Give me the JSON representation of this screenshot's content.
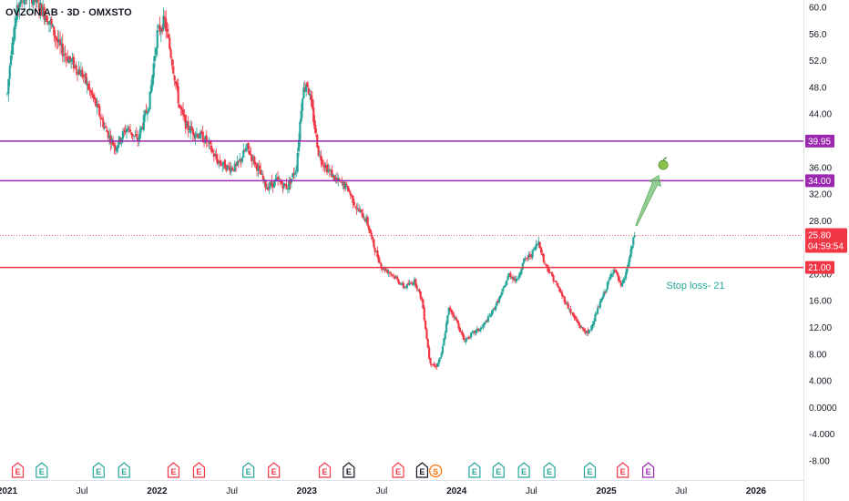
{
  "chart_data": {
    "type": "candlestick",
    "title": "OVZON AB · 3D · OMXSTO",
    "ylim": [
      -8,
      60
    ],
    "y_ticks": [
      "60.0",
      "56.0",
      "52.0",
      "48.0",
      "44.00",
      "40.00",
      "36.00",
      "32.00",
      "28.00",
      "24.00",
      "20.00",
      "16.00",
      "12.00",
      "8.00",
      "4.000",
      "0.0000",
      "-4.000",
      "-8.00"
    ],
    "x_ticks": [
      {
        "label": "2021",
        "t": 2021.0
      },
      {
        "label": "Jul",
        "t": 2021.5
      },
      {
        "label": "2022",
        "t": 2022.0
      },
      {
        "label": "Jul",
        "t": 2022.5
      },
      {
        "label": "2023",
        "t": 2023.0
      },
      {
        "label": "Jul",
        "t": 2023.5
      },
      {
        "label": "2024",
        "t": 2024.0
      },
      {
        "label": "Jul",
        "t": 2024.5
      },
      {
        "label": "2025",
        "t": 2025.0
      },
      {
        "label": "Jul",
        "t": 2025.5
      },
      {
        "label": "2026",
        "t": 2026.0
      }
    ],
    "xlim": [
      2021.0,
      2026.2
    ],
    "price_path": [
      [
        2021.0,
        47
      ],
      [
        2021.03,
        55
      ],
      [
        2021.08,
        61
      ],
      [
        2021.15,
        62
      ],
      [
        2021.22,
        60
      ],
      [
        2021.28,
        58
      ],
      [
        2021.35,
        54
      ],
      [
        2021.42,
        52
      ],
      [
        2021.5,
        50
      ],
      [
        2021.58,
        46
      ],
      [
        2021.65,
        42
      ],
      [
        2021.72,
        39
      ],
      [
        2021.8,
        42
      ],
      [
        2021.87,
        40
      ],
      [
        2021.95,
        46
      ],
      [
        2022.0,
        56
      ],
      [
        2022.05,
        58
      ],
      [
        2022.1,
        52
      ],
      [
        2022.15,
        45
      ],
      [
        2022.2,
        42
      ],
      [
        2022.27,
        41
      ],
      [
        2022.33,
        40
      ],
      [
        2022.4,
        37
      ],
      [
        2022.47,
        36
      ],
      [
        2022.53,
        36
      ],
      [
        2022.6,
        39
      ],
      [
        2022.67,
        36
      ],
      [
        2022.73,
        33
      ],
      [
        2022.8,
        34
      ],
      [
        2022.87,
        33
      ],
      [
        2022.93,
        36
      ],
      [
        2022.97,
        47
      ],
      [
        2023.0,
        49
      ],
      [
        2023.04,
        44
      ],
      [
        2023.08,
        38
      ],
      [
        2023.13,
        36
      ],
      [
        2023.2,
        34
      ],
      [
        2023.27,
        33
      ],
      [
        2023.33,
        30
      ],
      [
        2023.4,
        28
      ],
      [
        2023.45,
        24
      ],
      [
        2023.5,
        21
      ],
      [
        2023.57,
        20
      ],
      [
        2023.65,
        18
      ],
      [
        2023.72,
        19
      ],
      [
        2023.77,
        16
      ],
      [
        2023.82,
        7
      ],
      [
        2023.86,
        6
      ],
      [
        2023.9,
        8
      ],
      [
        2023.95,
        15
      ],
      [
        2024.0,
        13
      ],
      [
        2024.05,
        10
      ],
      [
        2024.1,
        11
      ],
      [
        2024.17,
        12
      ],
      [
        2024.23,
        14
      ],
      [
        2024.3,
        17
      ],
      [
        2024.35,
        20
      ],
      [
        2024.4,
        19
      ],
      [
        2024.45,
        22
      ],
      [
        2024.5,
        23
      ],
      [
        2024.55,
        25
      ],
      [
        2024.58,
        22
      ],
      [
        2024.63,
        20
      ],
      [
        2024.7,
        17
      ],
      [
        2024.77,
        14
      ],
      [
        2024.83,
        12
      ],
      [
        2024.88,
        11
      ],
      [
        2024.93,
        14
      ],
      [
        2025.0,
        18
      ],
      [
        2025.05,
        21
      ],
      [
        2025.1,
        18
      ],
      [
        2025.13,
        20
      ],
      [
        2025.16,
        23
      ],
      [
        2025.19,
        26
      ]
    ],
    "horizontal_lines": [
      {
        "value": 39.95,
        "label": "39.95",
        "color": "#9c27b0"
      },
      {
        "value": 34.0,
        "label": "34.00",
        "color": "#9c27b0"
      },
      {
        "value": 21.0,
        "label": "21.00",
        "color": "#f23645"
      }
    ],
    "last_price": {
      "value": 25.8,
      "label": "25.80",
      "countdown": "04:59:54",
      "color": "#f23645"
    },
    "annotations": [
      {
        "text": "Stop loss- 21",
        "color": "#26a69a",
        "t": 2025.4,
        "y": 17.8
      }
    ],
    "arrow": {
      "from": [
        2025.2,
        27.3
      ],
      "to": [
        2025.35,
        34.8
      ],
      "color": "#66bb6a"
    },
    "target_marker": {
      "t": 2025.38,
      "y": 36.5
    },
    "events": [
      {
        "type": "E",
        "t": 2021.07,
        "color": "#f23645"
      },
      {
        "type": "E",
        "t": 2021.23,
        "color": "#26a69a"
      },
      {
        "type": "E",
        "t": 2021.61,
        "color": "#26a69a"
      },
      {
        "type": "E",
        "t": 2021.78,
        "color": "#26a69a"
      },
      {
        "type": "E",
        "t": 2022.11,
        "color": "#f23645"
      },
      {
        "type": "E",
        "t": 2022.28,
        "color": "#f23645"
      },
      {
        "type": "E",
        "t": 2022.61,
        "color": "#26a69a"
      },
      {
        "type": "E",
        "t": 2022.78,
        "color": "#f23645"
      },
      {
        "type": "E",
        "t": 2023.12,
        "color": "#f23645"
      },
      {
        "type": "E",
        "t": 2023.28,
        "color": "#131722"
      },
      {
        "type": "E",
        "t": 2023.61,
        "color": "#f23645"
      },
      {
        "type": "E",
        "t": 2023.77,
        "color": "#131722"
      },
      {
        "type": "S",
        "t": 2023.86,
        "color": "#ff6d00"
      },
      {
        "type": "E",
        "t": 2024.12,
        "color": "#26a69a"
      },
      {
        "type": "E",
        "t": 2024.28,
        "color": "#26a69a"
      },
      {
        "type": "E",
        "t": 2024.45,
        "color": "#26a69a"
      },
      {
        "type": "E",
        "t": 2024.62,
        "color": "#26a69a"
      },
      {
        "type": "E",
        "t": 2024.89,
        "color": "#26a69a"
      },
      {
        "type": "E",
        "t": 2025.11,
        "color": "#f23645"
      },
      {
        "type": "E",
        "t": 2025.28,
        "color": "#9c27b0"
      }
    ],
    "colors": {
      "up": "#26a69a",
      "down": "#f23645",
      "grid": "none"
    },
    "grid": false
  }
}
